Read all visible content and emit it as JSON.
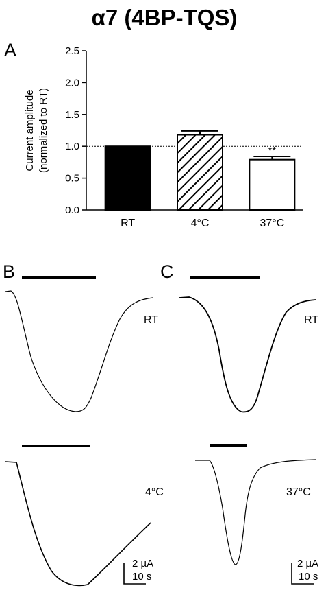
{
  "title": "α7 (4BP-TQS)",
  "panels": {
    "a": "A",
    "b": "B",
    "c": "C"
  },
  "chart_data": {
    "type": "bar",
    "categories": [
      "RT",
      "4°C",
      "37°C"
    ],
    "values": [
      1.0,
      1.18,
      0.79
    ],
    "errors": [
      0,
      0.06,
      0.05
    ],
    "fills": [
      "solid",
      "hatched",
      "empty"
    ],
    "ylabel_line1": "Current amplitude",
    "ylabel_line2": "(normalized to RT)",
    "ylim": [
      0,
      2.5
    ],
    "yticks": [
      "0.0",
      "0.5",
      "1.0",
      "1.5",
      "2.0",
      "2.5"
    ],
    "reference_line": 1.0,
    "significance": {
      "category": "37°C",
      "label": "**"
    }
  },
  "traces": {
    "b_top_label": "RT",
    "b_bottom_label": "4°C",
    "c_top_label": "RT",
    "c_bottom_label": "37°C",
    "scale_current": "2 µA",
    "scale_time": "10 s"
  },
  "colors": {
    "ink": "#000000",
    "background": "#ffffff"
  }
}
